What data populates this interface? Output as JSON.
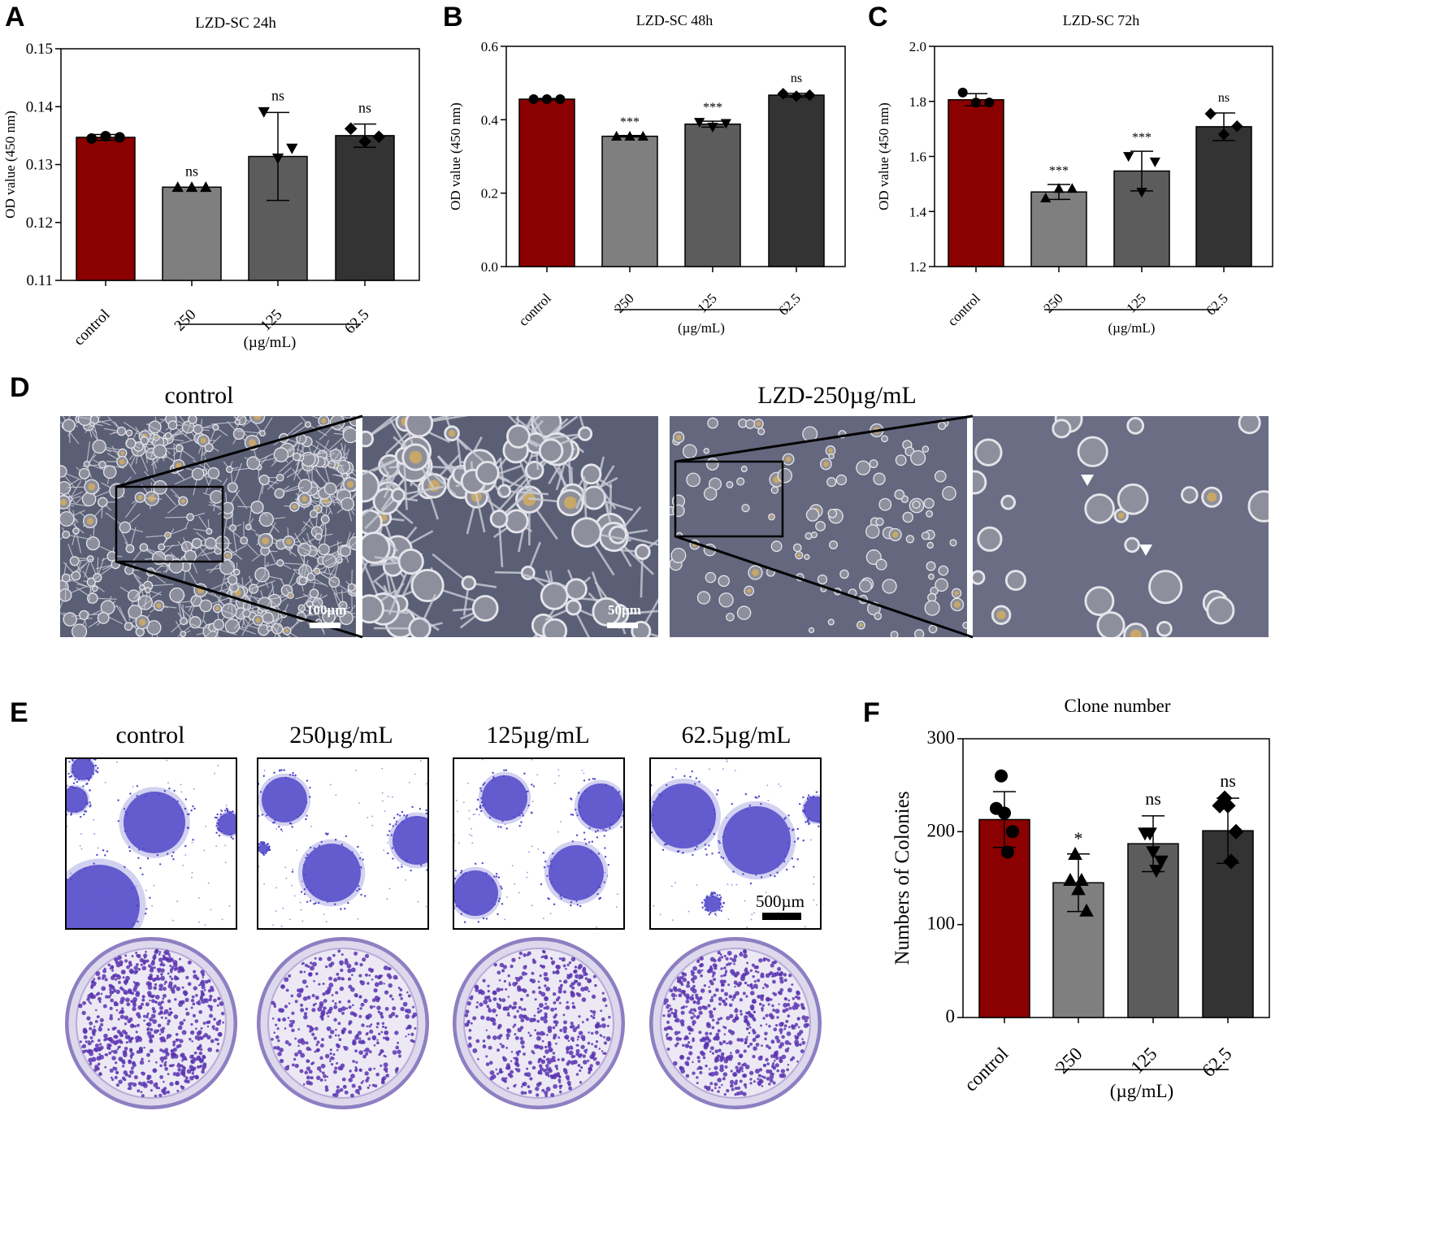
{
  "panels": {
    "A": "A",
    "B": "B",
    "C": "C",
    "D": "D",
    "E": "E",
    "F": "F"
  },
  "colors": {
    "control": "#8b0000",
    "c250": "#7f7f7f",
    "c125": "#5c5c5c",
    "c62": "#333333",
    "microscope_bg": "#5b5f75",
    "stain": "#5047c8"
  },
  "chart_data": [
    {
      "id": "A",
      "type": "bar",
      "title": "LZD-SC 24h",
      "ylabel": "OD value (450 nm)",
      "unit_label": "(µg/mL)",
      "categories": [
        "control",
        "250",
        "125",
        "62.5"
      ],
      "values": [
        0.1347,
        0.1261,
        0.1314,
        0.135
      ],
      "errors": [
        0.0005,
        0.0,
        0.0076,
        0.002
      ],
      "points": [
        [
          0.1345,
          0.1349,
          0.1347
        ],
        [
          0.1261,
          0.1261,
          0.1261
        ],
        [
          0.1391,
          0.1311,
          0.1328
        ],
        [
          0.1362,
          0.134,
          0.1348
        ]
      ],
      "markers": [
        "circle",
        "triangle-up",
        "triangle-down",
        "diamond"
      ],
      "annotations": [
        "",
        "ns",
        "ns",
        "ns"
      ],
      "ylim": [
        0.11,
        0.15
      ],
      "yticks": [
        "0.11",
        "0.12",
        "0.13",
        "0.14",
        "0.15"
      ]
    },
    {
      "id": "B",
      "type": "bar",
      "title": "LZD-SC 48h",
      "ylabel": "OD value (450 nm)",
      "unit_label": "(µg/mL)",
      "categories": [
        "control",
        "250",
        "125",
        "62.5"
      ],
      "values": [
        0.456,
        0.355,
        0.388,
        0.467
      ],
      "errors": [
        0.002,
        0.002,
        0.008,
        0.005
      ],
      "points": [
        [
          0.456,
          0.456,
          0.456
        ],
        [
          0.355,
          0.355,
          0.355
        ],
        [
          0.393,
          0.38,
          0.39
        ],
        [
          0.471,
          0.464,
          0.467
        ]
      ],
      "markers": [
        "circle",
        "triangle-up",
        "triangle-down",
        "diamond"
      ],
      "annotations": [
        "",
        "***",
        "***",
        "ns"
      ],
      "ylim": [
        0.0,
        0.6
      ],
      "yticks": [
        "0.0",
        "0.2",
        "0.4",
        "0.6"
      ]
    },
    {
      "id": "C",
      "type": "bar",
      "title": "LZD-SC 72h",
      "ylabel": "OD value (450 nm)",
      "unit_label": "(µg/mL)",
      "categories": [
        "control",
        "250",
        "125",
        "62.5"
      ],
      "values": [
        1.806,
        1.471,
        1.547,
        1.708
      ],
      "errors": [
        0.022,
        0.027,
        0.072,
        0.05
      ],
      "points": [
        [
          1.832,
          1.796,
          1.796
        ],
        [
          1.449,
          1.484,
          1.484
        ],
        [
          1.6,
          1.47,
          1.58
        ],
        [
          1.755,
          1.68,
          1.71
        ]
      ],
      "markers": [
        "circle",
        "triangle-up",
        "triangle-down",
        "diamond"
      ],
      "annotations": [
        "",
        "***",
        "***",
        "ns"
      ],
      "ylim": [
        1.2,
        2.0
      ],
      "yticks": [
        "1.2",
        "1.4",
        "1.6",
        "1.8",
        "2.0"
      ]
    },
    {
      "id": "F",
      "type": "bar",
      "title": "Clone number",
      "ylabel": "Numbers of Colonies",
      "unit_label": "(µg/mL)",
      "categories": [
        "control",
        "250",
        "125",
        "62.5"
      ],
      "values": [
        213,
        145,
        187,
        201
      ],
      "errors": [
        30,
        31,
        30,
        35
      ],
      "points": [
        [
          260,
          225,
          220,
          200,
          178
        ],
        [
          176,
          148,
          138,
          115,
          148
        ],
        [
          198,
          198,
          178,
          168,
          158
        ],
        [
          236,
          228,
          228,
          200,
          168
        ]
      ],
      "markers": [
        "circle",
        "triangle-up",
        "triangle-down",
        "diamond"
      ],
      "annotations": [
        "",
        "*",
        "ns",
        "ns"
      ],
      "ylim": [
        0,
        300
      ],
      "yticks": [
        "0",
        "100",
        "200",
        "300"
      ]
    }
  ],
  "microscopy": {
    "control_title": "control",
    "treated_title": "LZD-250µg/mL",
    "scale_100": "100µm",
    "scale_50": "50µm"
  },
  "colony": {
    "titles": [
      "control",
      "250µg/mL",
      "125µg/mL",
      "62.5µg/mL"
    ],
    "scale_label": "500µm"
  }
}
